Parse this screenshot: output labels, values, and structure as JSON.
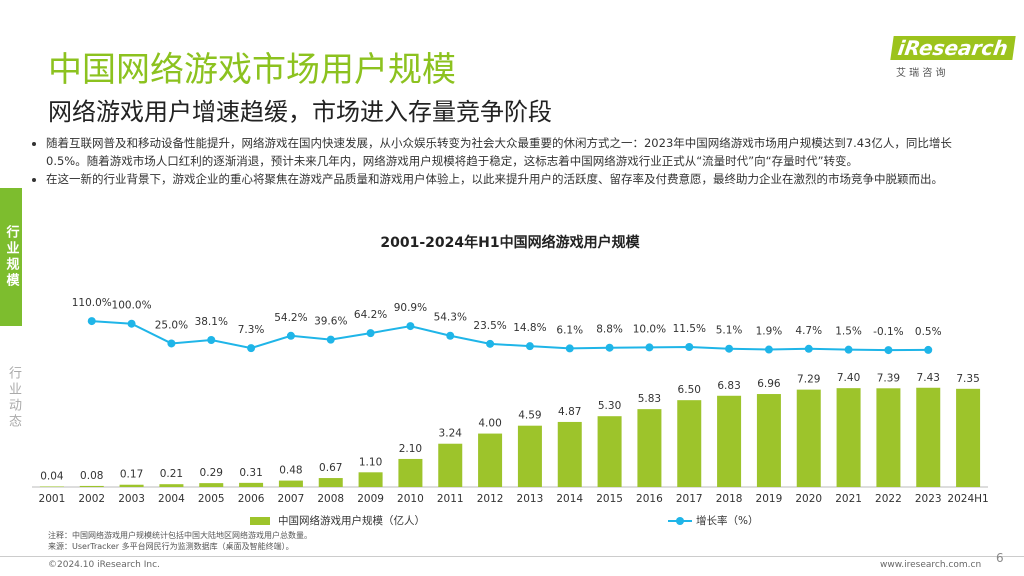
{
  "header": {
    "title": "中国网络游戏市场用户规模",
    "subtitle": "网络游戏用户增速趋缓，市场进入存量竞争阶段",
    "logo": "iResearch",
    "logo_sub": "艾 瑞 咨 询"
  },
  "sidebar": {
    "active": "行业规模",
    "inactive": "行业动态"
  },
  "bullets": [
    "随着互联网普及和移动设备性能提升，网络游戏在国内快速发展，从小众娱乐转变为社会大众最重要的休闲方式之一：2023年中国网络游戏市场用户规模达到7.43亿人，同比增长0.5%。随着游戏市场人口红利的逐渐消退，预计未来几年内，网络游戏用户规模将趋于稳定，这标志着中国网络游戏行业正式从“流量时代”向“存量时代”转变。",
    "在这一新的行业背景下，游戏企业的重心将聚焦在游戏产品质量和游戏用户体验上，以此来提升用户的活跃度、留存率及付费意愿，最终助力企业在激烈的市场竞争中脱颖而出。"
  ],
  "chart_data": {
    "type": "bar",
    "title": "2001-2024年H1中国网络游戏用户规模",
    "categories": [
      "2001",
      "2002",
      "2003",
      "2004",
      "2005",
      "2006",
      "2007",
      "2008",
      "2009",
      "2010",
      "2011",
      "2012",
      "2013",
      "2014",
      "2015",
      "2016",
      "2017",
      "2018",
      "2019",
      "2020",
      "2021",
      "2022",
      "2023",
      "2024H1"
    ],
    "series": [
      {
        "name": "中国网络游戏用户规模（亿人）",
        "type": "bar",
        "color": "#9dc42b",
        "values": [
          0.04,
          0.08,
          0.17,
          0.21,
          0.29,
          0.31,
          0.48,
          0.67,
          1.1,
          2.1,
          3.24,
          4,
          4.59,
          4.87,
          5.3,
          5.83,
          6.5,
          6.83,
          6.96,
          7.29,
          7.4,
          7.39,
          7.43,
          7.35
        ],
        "value_labels": [
          "0.04",
          "0.08",
          "0.17",
          "0.21",
          "0.29",
          "0.31",
          "0.48",
          "0.67",
          "1.10",
          "2.10",
          "3.24",
          "4.00",
          "4.59",
          "4.87",
          "5.30",
          "5.83",
          "6.50",
          "6.83",
          "6.96",
          "7.29",
          "7.40",
          "7.39",
          "7.43",
          "7.35"
        ]
      },
      {
        "name": "增长率（%）",
        "type": "line",
        "axis": "y2",
        "color": "#1fb5e8",
        "values": [
          null,
          110,
          100,
          25,
          38.1,
          7.3,
          54.2,
          39.6,
          64.2,
          90.9,
          54.3,
          23.5,
          14.8,
          6.1,
          8.8,
          10,
          11.5,
          5.1,
          1.9,
          4.7,
          1.5,
          -0.1,
          0.5,
          null
        ],
        "value_labels": [
          null,
          "110.0%",
          "100.0%",
          "25.0%",
          "38.1%",
          "7.3%",
          "54.2%",
          "39.6%",
          "64.2%",
          "90.9%",
          "54.3%",
          "23.5%",
          "14.8%",
          "6.1%",
          "8.8%",
          "10.0%",
          "11.5%",
          "5.1%",
          "1.9%",
          "4.7%",
          "1.5%",
          "-0.1%",
          "0.5%",
          null
        ]
      }
    ],
    "ylim": [
      0,
      14
    ],
    "y2lim": [
      -520,
      190
    ],
    "legend": "bottom"
  },
  "footer": {
    "notes": [
      "注释：中国网络游戏用户规模统计包括中国大陆地区网络游戏用户总数量。",
      "来源：UserTracker 多平台网民行为监测数据库（桌面及智能终端）。"
    ],
    "copyright": "©2024.10 iResearch Inc.",
    "url": "www.iresearch.com.cn",
    "page": "6"
  }
}
